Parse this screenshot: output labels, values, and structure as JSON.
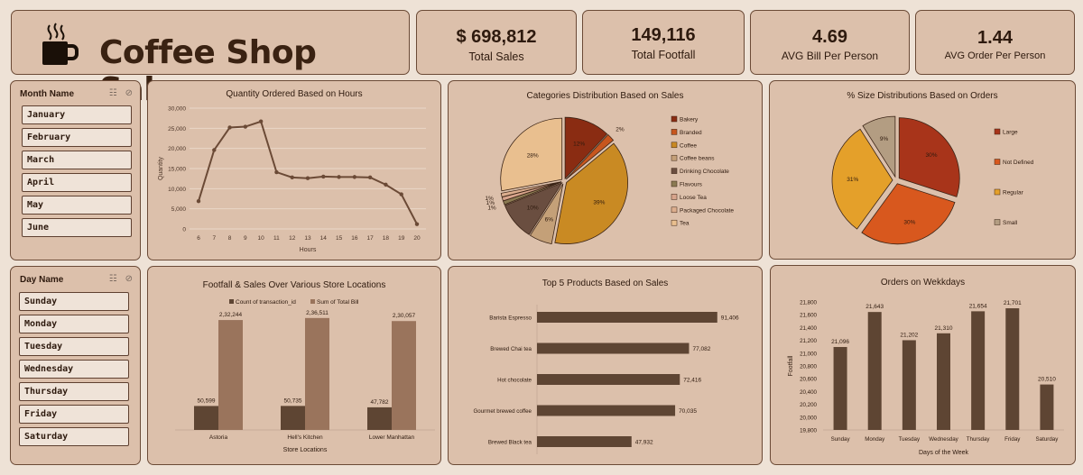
{
  "header": {
    "title": "Coffee Shop Sales",
    "icon": "coffee-cup-icon"
  },
  "kpis": [
    {
      "value": "$ 698,812",
      "label": "Total Sales"
    },
    {
      "value": "149,116",
      "label": "Total Footfall"
    },
    {
      "value": "4.69",
      "label": "AVG Bill Per Person"
    },
    {
      "value": "1.44",
      "label": "AVG Order Per Person"
    }
  ],
  "month_slicer": {
    "header": "Month Name",
    "items": [
      "January",
      "February",
      "March",
      "April",
      "May",
      "June"
    ]
  },
  "day_slicer": {
    "header": "Day Name",
    "items": [
      "Sunday",
      "Monday",
      "Tuesday",
      "Wednesday",
      "Thursday",
      "Friday",
      "Saturday"
    ]
  },
  "colors": {
    "line": "#6b4a36",
    "bar_dark": "#5e4533",
    "bar_light": "#9a745c",
    "pie_cat": [
      "#8a2c12",
      "#c7561e",
      "#c98a23",
      "#c4a078",
      "#6a4e40",
      "#8a7a52",
      "#d7a48c",
      "#dcae8e",
      "#e9bf8f"
    ],
    "pie_size": [
      "#a8341a",
      "#d8581e",
      "#e4a02a",
      "#b39d82"
    ]
  },
  "chart_data": [
    {
      "id": "hours",
      "type": "line",
      "title": "Quantity Ordered Based on Hours",
      "xlabel": "Hours",
      "ylabel": "Quantity",
      "x": [
        6,
        7,
        8,
        9,
        10,
        11,
        12,
        13,
        14,
        15,
        16,
        17,
        18,
        19,
        20
      ],
      "values": [
        6900,
        19600,
        25200,
        25400,
        26700,
        14100,
        12800,
        12600,
        13000,
        12900,
        12900,
        12800,
        11000,
        8600,
        1200
      ],
      "ylim": [
        0,
        30000
      ],
      "yticks": [
        "0",
        "5,000",
        "10,000",
        "15,000",
        "20,000",
        "25,000",
        "30,000"
      ],
      "grid": true
    },
    {
      "id": "categories",
      "type": "pie",
      "title": "Categories Distribution Based on Sales",
      "categories": [
        "Bakery",
        "Branded",
        "Coffee",
        "Coffee beans",
        "Drinking Chocolate",
        "Flavours",
        "Loose Tea",
        "Packaged Chocolate",
        "Tea"
      ],
      "values": [
        12,
        2,
        39,
        6,
        10,
        1,
        1,
        1,
        28
      ],
      "labels": [
        "12%",
        "2%",
        "39%",
        "6%",
        "10%",
        "1%",
        "1%",
        "1%",
        "28%"
      ],
      "legend": "right"
    },
    {
      "id": "sizes",
      "type": "pie",
      "title": "% Size Distributions Based on Orders",
      "categories": [
        "Large",
        "Not Defined",
        "Regular",
        "Small"
      ],
      "values": [
        30,
        30,
        31,
        9
      ],
      "labels": [
        "30%",
        "30%",
        "31%",
        "9%"
      ],
      "legend": "right"
    },
    {
      "id": "locations",
      "type": "bar",
      "title": "Footfall & Sales Over Various Store Locations",
      "xlabel": "Store Locations",
      "categories": [
        "Astoria",
        "Hell's Kitchen",
        "Lower Manhattan"
      ],
      "series": [
        {
          "name": "Count of transaction_id",
          "values": [
            50599,
            50735,
            47782
          ],
          "labels": [
            "50,599",
            "50,735",
            "47,782"
          ]
        },
        {
          "name": "Sum of Total Bill",
          "values": [
            232244,
            236511,
            230057
          ],
          "labels": [
            "2,32,244",
            "2,36,511",
            "2,30,057"
          ]
        }
      ],
      "legend": "top"
    },
    {
      "id": "products",
      "type": "bar",
      "orientation": "horizontal",
      "title": "Top 5 Products Based on Sales",
      "categories": [
        "Barista Espresso",
        "Brewed Chai tea",
        "Hot chocolate",
        "Gourmet brewed coffee",
        "Brewed Black tea"
      ],
      "values": [
        91406,
        77082,
        72416,
        70035,
        47932
      ],
      "labels": [
        "91,406",
        "77,082",
        "72,416",
        "70,035",
        "47,932"
      ]
    },
    {
      "id": "weekdays",
      "type": "bar",
      "title": "Orders on Wekkdays",
      "xlabel": "Days of the Week",
      "ylabel": "Footfall",
      "categories": [
        "Sunday",
        "Monday",
        "Tuesday",
        "Wednesday",
        "Thursday",
        "Friday",
        "Saturday"
      ],
      "values": [
        21096,
        21643,
        21202,
        21310,
        21654,
        21701,
        20510
      ],
      "labels": [
        "21,096",
        "21,643",
        "21,202",
        "21,310",
        "21,654",
        "21,701",
        "20,510"
      ],
      "ylim": [
        19800,
        21800
      ],
      "yticks": [
        "19,800",
        "20,000",
        "20,200",
        "20,400",
        "20,600",
        "20,800",
        "21,000",
        "21,200",
        "21,400",
        "21,600",
        "21,800"
      ]
    }
  ]
}
